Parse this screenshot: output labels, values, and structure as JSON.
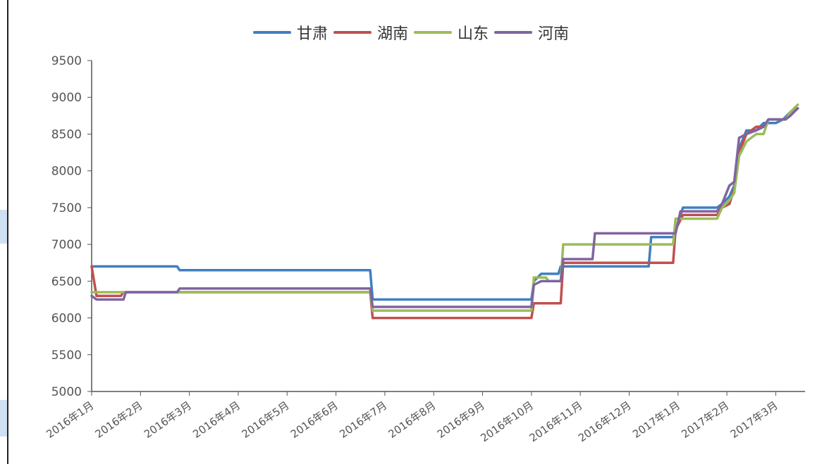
{
  "chart_data": {
    "type": "line",
    "title": "",
    "xlabel": "",
    "ylabel": "",
    "ylim": [
      5000,
      9500
    ],
    "yticks": [
      5000,
      5500,
      6000,
      6500,
      7000,
      7500,
      8000,
      8500,
      9000,
      9500
    ],
    "xlim": [
      0,
      14.6
    ],
    "x_ticks": [
      {
        "x": 0,
        "label": "2016年1月"
      },
      {
        "x": 1,
        "label": "2016年2月"
      },
      {
        "x": 2,
        "label": "2016年3月"
      },
      {
        "x": 3,
        "label": "2016年4月"
      },
      {
        "x": 4,
        "label": "2016年5月"
      },
      {
        "x": 5,
        "label": "2016年6月"
      },
      {
        "x": 6,
        "label": "2016年7月"
      },
      {
        "x": 7,
        "label": "2016年8月"
      },
      {
        "x": 8,
        "label": "2016年9月"
      },
      {
        "x": 9,
        "label": "2016年10月"
      },
      {
        "x": 10,
        "label": "2016年11月"
      },
      {
        "x": 11,
        "label": "2016年12月"
      },
      {
        "x": 12,
        "label": "2017年1月"
      },
      {
        "x": 13,
        "label": "2017年2月"
      },
      {
        "x": 14,
        "label": "2017年3月"
      }
    ],
    "legend_position": "top-center",
    "grid": false,
    "series": [
      {
        "name": "甘肃",
        "color": "#3f7fc0",
        "points": [
          [
            0,
            6700
          ],
          [
            0.1,
            6700
          ],
          [
            1.75,
            6700
          ],
          [
            1.8,
            6650
          ],
          [
            5.7,
            6650
          ],
          [
            5.75,
            6250
          ],
          [
            9.0,
            6250
          ],
          [
            9.05,
            6500
          ],
          [
            9.2,
            6600
          ],
          [
            9.55,
            6600
          ],
          [
            9.6,
            6700
          ],
          [
            11.4,
            6700
          ],
          [
            11.45,
            7100
          ],
          [
            11.9,
            7100
          ],
          [
            12.1,
            7500
          ],
          [
            12.8,
            7500
          ],
          [
            12.9,
            7550
          ],
          [
            13.05,
            7650
          ],
          [
            13.15,
            7800
          ],
          [
            13.25,
            8300
          ],
          [
            13.4,
            8550
          ],
          [
            13.6,
            8550
          ],
          [
            13.75,
            8650
          ],
          [
            14.0,
            8650
          ],
          [
            14.15,
            8700
          ],
          [
            14.3,
            8800
          ],
          [
            14.45,
            8850
          ]
        ]
      },
      {
        "name": "湖南",
        "color": "#c0504d",
        "points": [
          [
            0,
            6700
          ],
          [
            0.1,
            6300
          ],
          [
            0.6,
            6300
          ],
          [
            0.65,
            6350
          ],
          [
            5.7,
            6350
          ],
          [
            5.75,
            6000
          ],
          [
            9.0,
            6000
          ],
          [
            9.05,
            6200
          ],
          [
            9.6,
            6200
          ],
          [
            9.65,
            6750
          ],
          [
            10.2,
            6750
          ],
          [
            10.25,
            6750
          ],
          [
            11.9,
            6750
          ],
          [
            11.95,
            7200
          ],
          [
            12.1,
            7400
          ],
          [
            12.8,
            7400
          ],
          [
            12.9,
            7500
          ],
          [
            13.05,
            7550
          ],
          [
            13.15,
            7750
          ],
          [
            13.25,
            8250
          ],
          [
            13.4,
            8500
          ],
          [
            13.6,
            8600
          ],
          [
            13.75,
            8600
          ],
          [
            13.85,
            8700
          ],
          [
            14.2,
            8700
          ],
          [
            14.3,
            8800
          ],
          [
            14.45,
            8850
          ]
        ]
      },
      {
        "name": "山东",
        "color": "#9bbb59",
        "points": [
          [
            0,
            6350
          ],
          [
            0.1,
            6350
          ],
          [
            5.7,
            6350
          ],
          [
            5.75,
            6100
          ],
          [
            9.0,
            6100
          ],
          [
            9.05,
            6550
          ],
          [
            9.3,
            6550
          ],
          [
            9.35,
            6500
          ],
          [
            9.6,
            6500
          ],
          [
            9.65,
            7000
          ],
          [
            11.9,
            7000
          ],
          [
            11.95,
            7350
          ],
          [
            12.05,
            7350
          ],
          [
            12.8,
            7350
          ],
          [
            12.9,
            7500
          ],
          [
            13.05,
            7600
          ],
          [
            13.15,
            7700
          ],
          [
            13.25,
            8200
          ],
          [
            13.4,
            8400
          ],
          [
            13.6,
            8500
          ],
          [
            13.75,
            8500
          ],
          [
            13.85,
            8700
          ],
          [
            14.2,
            8700
          ],
          [
            14.3,
            8800
          ],
          [
            14.45,
            8900
          ]
        ]
      },
      {
        "name": "河南",
        "color": "#8064a2",
        "points": [
          [
            0,
            6300
          ],
          [
            0.1,
            6250
          ],
          [
            0.65,
            6250
          ],
          [
            0.7,
            6350
          ],
          [
            1.75,
            6350
          ],
          [
            1.8,
            6400
          ],
          [
            5.7,
            6400
          ],
          [
            5.75,
            6150
          ],
          [
            7.7,
            6150
          ],
          [
            7.75,
            6150
          ],
          [
            9.0,
            6150
          ],
          [
            9.05,
            6450
          ],
          [
            9.2,
            6500
          ],
          [
            9.6,
            6500
          ],
          [
            9.65,
            6800
          ],
          [
            10.25,
            6800
          ],
          [
            10.3,
            7150
          ],
          [
            11.9,
            7150
          ],
          [
            11.95,
            7150
          ],
          [
            12.05,
            7450
          ],
          [
            12.8,
            7450
          ],
          [
            12.9,
            7550
          ],
          [
            13.05,
            7800
          ],
          [
            13.15,
            7850
          ],
          [
            13.25,
            8450
          ],
          [
            13.4,
            8500
          ],
          [
            13.6,
            8550
          ],
          [
            13.75,
            8600
          ],
          [
            13.85,
            8700
          ],
          [
            14.2,
            8700
          ],
          [
            14.3,
            8750
          ],
          [
            14.45,
            8850
          ]
        ]
      }
    ]
  }
}
